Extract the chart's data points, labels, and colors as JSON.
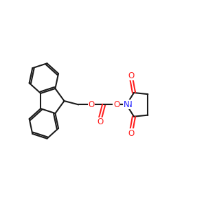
{
  "background_color": "#FFFFFF",
  "bond_color": "#1a1a1a",
  "oxygen_color": "#FF2020",
  "nitrogen_color": "#2020FF",
  "lw": 1.5,
  "figsize": [
    3.0,
    3.0
  ],
  "dpi": 100,
  "xlim": [
    0,
    10
  ],
  "ylim": [
    0,
    10
  ]
}
